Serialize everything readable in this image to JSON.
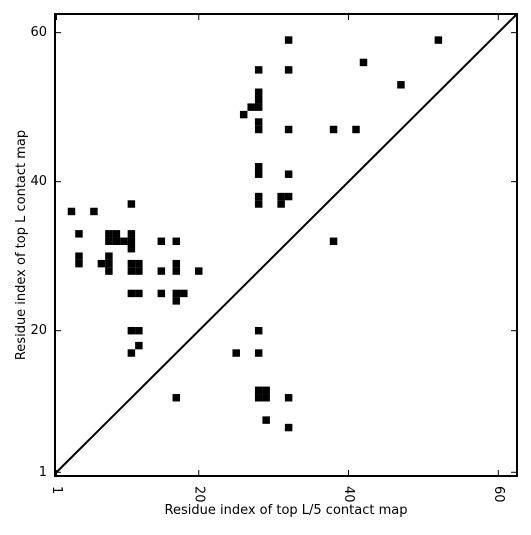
{
  "chart_data": {
    "type": "scatter",
    "title": "",
    "xlabel": "Residue index of top L/5 contact map",
    "ylabel": "Residue index of top L contact map",
    "xlim": [
      0.8,
      62.5
    ],
    "ylim": [
      0.5,
      62.5
    ],
    "x_ticks": [
      {
        "value": 1,
        "label": "1",
        "rotation": -90
      },
      {
        "value": 20,
        "label": "20",
        "rotation": -90
      },
      {
        "value": 40,
        "label": "40",
        "rotation": -90
      },
      {
        "value": 60,
        "label": "60",
        "rotation": -90
      }
    ],
    "y_ticks": [
      {
        "value": 1,
        "label": "1"
      },
      {
        "value": 20,
        "label": "20"
      },
      {
        "value": 40,
        "label": "40"
      },
      {
        "value": 60,
        "label": "60"
      }
    ],
    "diagonal_line": true,
    "grid": false,
    "marker": "square",
    "marker_color": "#000000",
    "points": [
      [
        3,
        36
      ],
      [
        6,
        36
      ],
      [
        4,
        33
      ],
      [
        8,
        33
      ],
      [
        9,
        33
      ],
      [
        8,
        32
      ],
      [
        9,
        32
      ],
      [
        4,
        30
      ],
      [
        4,
        29
      ],
      [
        8,
        30
      ],
      [
        7,
        29
      ],
      [
        8,
        29
      ],
      [
        8,
        28
      ],
      [
        10,
        32
      ],
      [
        11,
        32
      ],
      [
        11,
        33
      ],
      [
        11,
        31
      ],
      [
        11,
        37
      ],
      [
        11,
        29
      ],
      [
        12,
        29
      ],
      [
        11,
        28
      ],
      [
        12,
        28
      ],
      [
        11,
        25
      ],
      [
        12,
        25
      ],
      [
        15,
        32
      ],
      [
        17,
        32
      ],
      [
        15,
        28
      ],
      [
        17,
        29
      ],
      [
        17,
        28
      ],
      [
        20,
        28
      ],
      [
        15,
        25
      ],
      [
        17,
        25
      ],
      [
        18,
        25
      ],
      [
        17,
        24
      ],
      [
        11,
        20
      ],
      [
        12,
        20
      ],
      [
        12,
        18
      ],
      [
        11,
        17
      ],
      [
        17,
        11
      ],
      [
        25,
        17
      ],
      [
        28,
        17
      ],
      [
        28,
        20
      ],
      [
        28,
        11
      ],
      [
        29,
        11
      ],
      [
        28,
        12
      ],
      [
        29,
        12
      ],
      [
        29,
        8
      ],
      [
        32,
        7
      ],
      [
        32,
        11
      ],
      [
        26,
        49
      ],
      [
        27,
        50
      ],
      [
        28,
        50
      ],
      [
        28,
        51
      ],
      [
        28,
        52
      ],
      [
        28,
        48
      ],
      [
        28,
        47
      ],
      [
        28,
        55
      ],
      [
        32,
        55
      ],
      [
        32,
        59
      ],
      [
        32,
        47
      ],
      [
        28,
        42
      ],
      [
        28,
        41
      ],
      [
        32,
        41
      ],
      [
        28,
        38
      ],
      [
        28,
        37
      ],
      [
        31,
        38
      ],
      [
        31,
        37
      ],
      [
        32,
        38
      ],
      [
        38,
        47
      ],
      [
        41,
        47
      ],
      [
        38,
        32
      ],
      [
        42,
        56
      ],
      [
        47,
        53
      ],
      [
        52,
        59
      ]
    ]
  }
}
